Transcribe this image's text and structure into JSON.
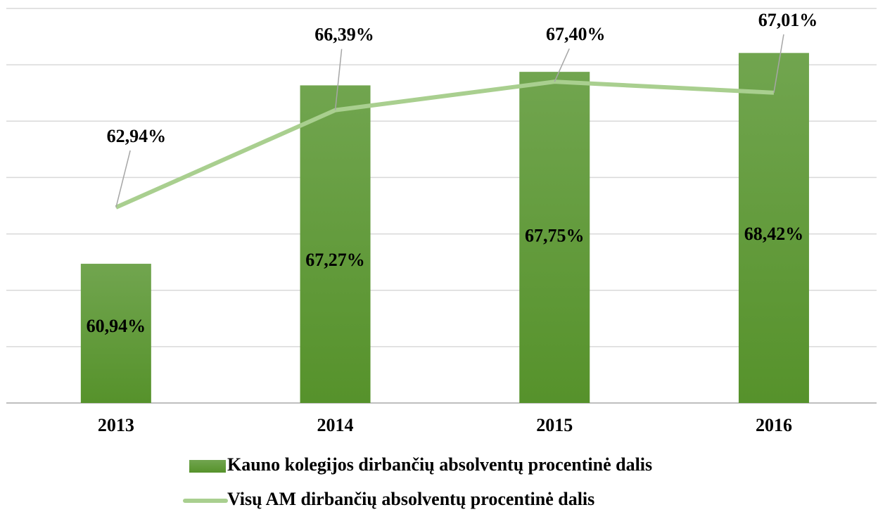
{
  "chart_data": {
    "type": "bar",
    "categories": [
      "2013",
      "2014",
      "2015",
      "2016"
    ],
    "series": [
      {
        "name": "Kauno kolegijos dirbančių absolventų procentinė dalis",
        "type": "bar",
        "color": "#5f9a36",
        "values": [
          60.94,
          67.27,
          67.75,
          68.42
        ],
        "value_labels": [
          "60,94%",
          "67,27%",
          "67,75%",
          "68,42%"
        ]
      },
      {
        "name": "Visų AM dirbančių absolventų procentinė dalis",
        "type": "line",
        "color": "#a9cf8f",
        "values": [
          62.94,
          66.39,
          67.4,
          67.01
        ],
        "value_labels": [
          "62,94%",
          "66,39%",
          "67,40%",
          "67,01%"
        ]
      }
    ],
    "ylim": [
      56,
      70
    ],
    "yticks": [
      56,
      58,
      60,
      62,
      64,
      66,
      68,
      70
    ],
    "grid": true,
    "legend": "bottom"
  }
}
